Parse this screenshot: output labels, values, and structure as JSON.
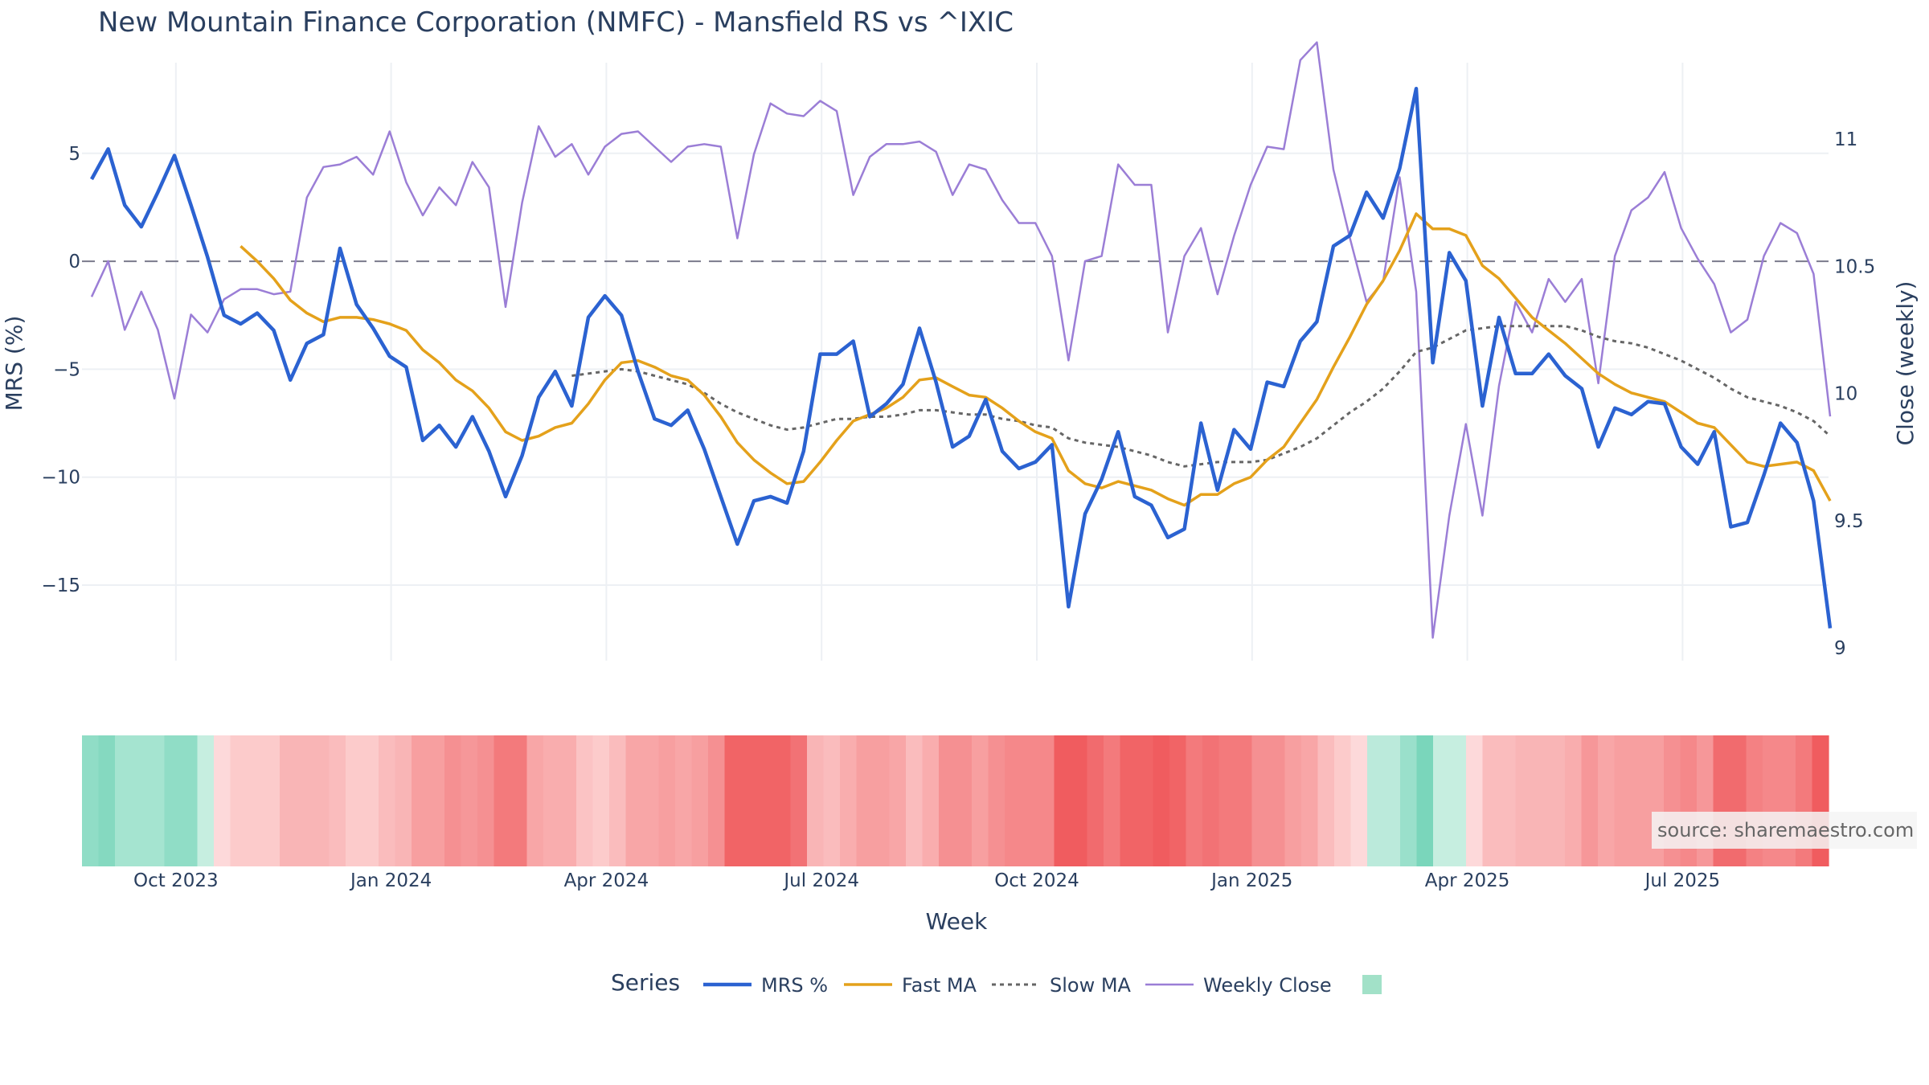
{
  "chart_data": {
    "type": "line",
    "title": "New Mountain Finance Corporation (NMFC) - Mansfield RS vs ^IXIC",
    "xlabel": "Week",
    "ylabel_left": "MRS (%)",
    "ylabel_right": "Close (weekly)",
    "ylim_left": [
      -18.5,
      9.2
    ],
    "ylim_right": [
      8.95,
      11.3
    ],
    "y_ticks_left": [
      {
        "value": 5,
        "label": "5"
      },
      {
        "value": 0,
        "label": "0"
      },
      {
        "value": -5,
        "label": "−5"
      },
      {
        "value": -10,
        "label": "−10"
      },
      {
        "value": -15,
        "label": "−15"
      }
    ],
    "y_ticks_right": [
      {
        "value": 11,
        "label": "11"
      },
      {
        "value": 10.5,
        "label": "10.5"
      },
      {
        "value": 10,
        "label": "10"
      },
      {
        "value": 9.5,
        "label": "9.5"
      },
      {
        "value": 9,
        "label": "9"
      }
    ],
    "x_ticks": [
      {
        "index": 3,
        "label": "Oct 2023"
      },
      {
        "index": 16,
        "label": "Jan 2024"
      },
      {
        "index": 29,
        "label": "Apr 2024"
      },
      {
        "index": 42,
        "label": "Jul 2024"
      },
      {
        "index": 55,
        "label": "Oct 2024"
      },
      {
        "index": 68,
        "label": "Jan 2025"
      },
      {
        "index": 81,
        "label": "Apr 2025"
      },
      {
        "index": 94,
        "label": "Jul 2025"
      }
    ],
    "zero_line": 0,
    "grid": true,
    "legend_title": "Series",
    "legend_position": "bottom",
    "source": "source: sharemaestro.com",
    "series": [
      {
        "name": "MRS %",
        "color": "#2b62d1",
        "dash": "solid",
        "values": [
          3.8,
          5.2,
          2.6,
          1.6,
          3.2,
          4.9,
          2.6,
          0.2,
          -2.5,
          -2.9,
          -2.4,
          -3.2,
          -5.5,
          -3.8,
          -3.4,
          0.6,
          -2.0,
          -3.1,
          -4.4,
          -4.9,
          -8.3,
          -7.6,
          -8.6,
          -7.2,
          -8.8,
          -10.9,
          -9.0,
          -6.3,
          -5.1,
          -6.7,
          -2.6,
          -1.6,
          -2.5,
          -5.1,
          -7.3,
          -7.6,
          -6.9,
          -8.7,
          -10.9,
          -13.1,
          -11.1,
          -10.9,
          -11.2,
          -8.8,
          -4.3,
          -4.3,
          -3.7,
          -7.2,
          -6.6,
          -5.7,
          -3.1,
          -5.6,
          -8.6,
          -8.1,
          -6.4,
          -8.8,
          -9.6,
          -9.3,
          -8.5,
          -16.0,
          -11.7,
          -10.1,
          -7.9,
          -10.9,
          -11.3,
          -12.8,
          -12.4,
          -7.5,
          -10.6,
          -7.8,
          -8.7,
          -5.6,
          -5.8,
          -3.7,
          -2.8,
          0.7,
          1.2,
          3.2,
          2.0,
          4.3,
          8.0,
          -4.7,
          0.4,
          -0.9,
          -6.7,
          -2.6,
          -5.2,
          -5.2,
          -4.3,
          -5.3,
          -5.9,
          -8.6,
          -6.8,
          -7.1,
          -6.5,
          -6.6,
          -8.6,
          -9.4,
          -7.9,
          -12.3,
          -12.1,
          -9.9,
          -7.5,
          -8.4,
          -11.1,
          -17.0
        ]
      },
      {
        "name": "Fast MA",
        "color": "#e4a11b",
        "dash": "solid",
        "values": [
          null,
          null,
          null,
          null,
          null,
          null,
          null,
          null,
          null,
          0.7,
          0.0,
          -0.8,
          -1.8,
          -2.4,
          -2.8,
          -2.6,
          -2.6,
          -2.7,
          -2.9,
          -3.2,
          -4.1,
          -4.7,
          -5.5,
          -6.0,
          -6.8,
          -7.9,
          -8.3,
          -8.1,
          -7.7,
          -7.5,
          -6.6,
          -5.5,
          -4.7,
          -4.6,
          -4.9,
          -5.3,
          -5.5,
          -6.2,
          -7.2,
          -8.4,
          -9.2,
          -9.8,
          -10.3,
          -10.2,
          -9.3,
          -8.3,
          -7.4,
          -7.1,
          -6.8,
          -6.3,
          -5.5,
          -5.4,
          -5.8,
          -6.2,
          -6.3,
          -6.8,
          -7.4,
          -7.9,
          -8.2,
          -9.7,
          -10.3,
          -10.5,
          -10.2,
          -10.4,
          -10.6,
          -11.0,
          -11.3,
          -10.8,
          -10.8,
          -10.3,
          -10.0,
          -9.2,
          -8.6,
          -7.5,
          -6.4,
          -4.9,
          -3.5,
          -2.0,
          -0.9,
          0.5,
          2.2,
          1.5,
          1.5,
          1.2,
          -0.2,
          -0.8,
          -1.7,
          -2.6,
          -3.2,
          -3.8,
          -4.5,
          -5.2,
          -5.7,
          -6.1,
          -6.3,
          -6.5,
          -7.0,
          -7.5,
          -7.7,
          -8.5,
          -9.3,
          -9.5,
          -9.4,
          -9.3,
          -9.7,
          -11.1
        ]
      },
      {
        "name": "Slow MA",
        "color": "#666666",
        "dash": "dot",
        "values": [
          null,
          null,
          null,
          null,
          null,
          null,
          null,
          null,
          null,
          null,
          null,
          null,
          null,
          null,
          null,
          null,
          null,
          null,
          null,
          null,
          null,
          null,
          null,
          null,
          null,
          null,
          null,
          null,
          null,
          -5.3,
          -5.2,
          -5.1,
          -5.0,
          -5.1,
          -5.3,
          -5.5,
          -5.7,
          -6.1,
          -6.6,
          -7.0,
          -7.3,
          -7.6,
          -7.8,
          -7.7,
          -7.5,
          -7.3,
          -7.3,
          -7.2,
          -7.2,
          -7.1,
          -6.9,
          -6.9,
          -7.0,
          -7.1,
          -7.1,
          -7.3,
          -7.4,
          -7.6,
          -7.7,
          -8.2,
          -8.4,
          -8.5,
          -8.6,
          -8.8,
          -9.0,
          -9.3,
          -9.5,
          -9.4,
          -9.3,
          -9.3,
          -9.3,
          -9.2,
          -8.9,
          -8.6,
          -8.2,
          -7.6,
          -7.0,
          -6.5,
          -5.9,
          -5.1,
          -4.2,
          -4.0,
          -3.6,
          -3.2,
          -3.1,
          -3.0,
          -3.0,
          -3.0,
          -3.0,
          -3.0,
          -3.2,
          -3.5,
          -3.7,
          -3.8,
          -4.0,
          -4.3,
          -4.6,
          -5.0,
          -5.4,
          -5.9,
          -6.3,
          -6.5,
          -6.7,
          -7.0,
          -7.4,
          -8.1
        ]
      },
      {
        "name": "Weekly Close",
        "color": "#9b7ed6",
        "dash": "solid",
        "axis": "right",
        "values": [
          10.38,
          10.52,
          10.25,
          10.4,
          10.25,
          9.98,
          10.31,
          10.24,
          10.37,
          10.41,
          10.41,
          10.39,
          10.4,
          10.77,
          10.89,
          10.9,
          10.93,
          10.86,
          11.03,
          10.83,
          10.7,
          10.81,
          10.74,
          10.91,
          10.81,
          10.34,
          10.75,
          11.05,
          10.93,
          10.98,
          10.86,
          10.97,
          11.02,
          11.03,
          10.97,
          10.91,
          10.97,
          10.98,
          10.97,
          10.61,
          10.94,
          11.14,
          11.1,
          11.09,
          11.15,
          11.11,
          10.78,
          10.93,
          10.98,
          10.98,
          10.99,
          10.95,
          10.78,
          10.9,
          10.88,
          10.76,
          10.67,
          10.67,
          10.54,
          10.13,
          10.52,
          10.54,
          10.9,
          10.82,
          10.82,
          10.24,
          10.54,
          10.65,
          10.39,
          10.62,
          10.82,
          10.97,
          10.96,
          11.31,
          11.38,
          10.88,
          10.61,
          10.36,
          10.44,
          10.85,
          10.4,
          9.04,
          9.52,
          9.88,
          9.52,
          10.03,
          10.36,
          10.24,
          10.45,
          10.36,
          10.45,
          10.04,
          10.54,
          10.72,
          10.77,
          10.87,
          10.65,
          10.53,
          10.43,
          10.24,
          10.29,
          10.54,
          10.67,
          10.63,
          10.47,
          9.91
        ]
      },
      {
        "name": "",
        "color": "#a2e1c8",
        "dash": "swatch",
        "values": []
      }
    ],
    "heatmap": {
      "values": [
        0.8,
        0.9,
        0.6,
        0.6,
        0.6,
        0.8,
        0.8,
        0.3,
        -0.1,
        -0.2,
        -0.2,
        -0.2,
        -0.35,
        -0.35,
        -0.35,
        -0.3,
        -0.2,
        -0.2,
        -0.3,
        -0.35,
        -0.5,
        -0.5,
        -0.6,
        -0.55,
        -0.6,
        -0.75,
        -0.75,
        -0.45,
        -0.4,
        -0.4,
        -0.25,
        -0.2,
        -0.3,
        -0.45,
        -0.45,
        -0.5,
        -0.45,
        -0.5,
        -0.6,
        -0.9,
        -0.9,
        -0.9,
        -0.9,
        -0.8,
        -0.35,
        -0.3,
        -0.4,
        -0.5,
        -0.5,
        -0.45,
        -0.3,
        -0.4,
        -0.6,
        -0.6,
        -0.5,
        -0.6,
        -0.65,
        -0.65,
        -0.65,
        -0.95,
        -0.95,
        -0.85,
        -0.75,
        -0.9,
        -0.9,
        -0.95,
        -0.9,
        -0.75,
        -0.8,
        -0.75,
        -0.75,
        -0.6,
        -0.6,
        -0.5,
        -0.45,
        -0.3,
        -0.2,
        -0.1,
        0.4,
        0.4,
        0.7,
        1.0,
        0.3,
        0.3,
        -0.1,
        -0.3,
        -0.3,
        -0.35,
        -0.35,
        -0.35,
        -0.4,
        -0.55,
        -0.45,
        -0.5,
        -0.5,
        -0.5,
        -0.6,
        -0.65,
        -0.55,
        -0.85,
        -0.85,
        -0.7,
        -0.65,
        -0.65,
        -0.75,
        -0.95
      ]
    }
  }
}
